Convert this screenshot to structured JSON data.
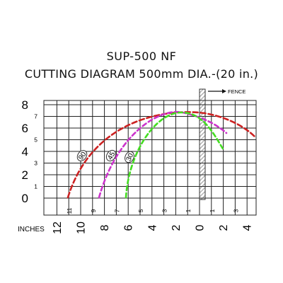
{
  "title_line1": "SUP-500 NF",
  "title_line2": "CUTTING DIAGRAM 500mm DIA.-(20 in.)",
  "fence_label": "FENCE",
  "units_label": "INCHES",
  "left_axis_major_labels": [
    "8",
    "6",
    "4",
    "2",
    "0"
  ],
  "left_axis_minor_labels": [
    "7",
    "5",
    "3",
    "1"
  ],
  "bottom_axis_major_labels": [
    "12",
    "10",
    "8",
    "6",
    "4",
    "2",
    "0",
    "2",
    "4"
  ],
  "bottom_axis_minor_labels": [
    "11",
    "9",
    "7",
    "5",
    "3",
    "1",
    "1",
    "3"
  ],
  "curves": [
    {
      "label": "90",
      "color": "#cc2222"
    },
    {
      "label": "45",
      "color": "#cc33cc"
    },
    {
      "label": "30",
      "color": "#44dd22"
    }
  ]
}
